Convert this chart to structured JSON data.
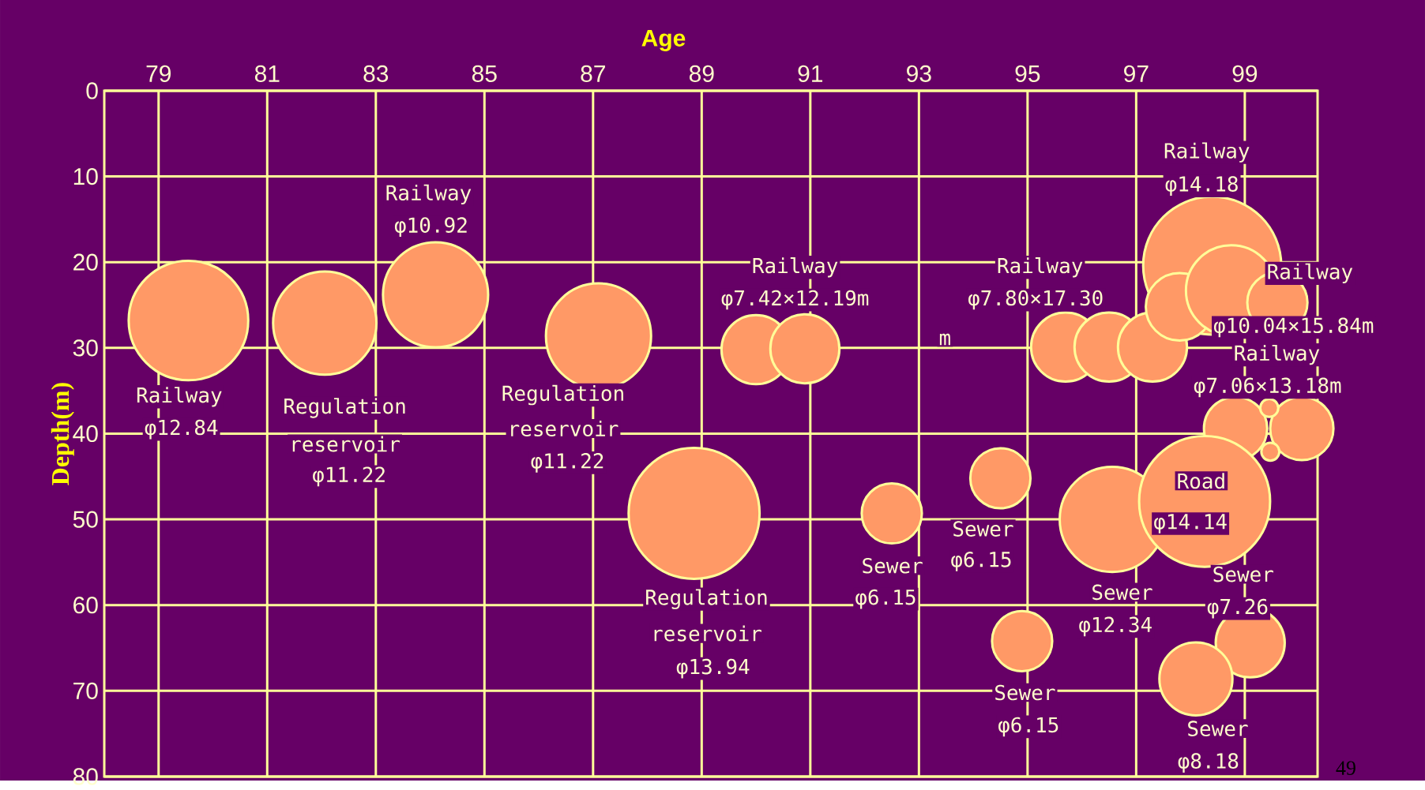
{
  "chart_data": {
    "type": "bubble",
    "xlabel": "Age",
    "ylabel": "Depth(m)",
    "xlim": [
      78,
      100.34
    ],
    "ylim": [
      80,
      0
    ],
    "xticks": [
      79,
      81,
      83,
      85,
      87,
      89,
      91,
      93,
      95,
      97,
      99
    ],
    "yticks": [
      0,
      10,
      20,
      30,
      40,
      50,
      60,
      70,
      80
    ],
    "grid": true,
    "series": [
      {
        "color": "#ff9966",
        "x": [
          79.55,
          82.06,
          84.1,
          87.1,
          88.86,
          90.0,
          90.9,
          92.5,
          94.5,
          94.9,
          95.7,
          96.5,
          97.3,
          96.56,
          98.4,
          97.8,
          98.75,
          99.6,
          98.83,
          100.05,
          99.45,
          99.47,
          98.26,
          99.1,
          98.1
        ],
        "values": [
          26.8,
          27.1,
          23.8,
          28.6,
          49.3,
          30.2,
          30.1,
          49.3,
          45.2,
          64.2,
          29.9,
          29.9,
          29.9,
          50.0,
          20.4,
          25.2,
          23.3,
          24.7,
          39.4,
          39.4,
          37.0,
          42.1,
          47.9,
          64.4,
          68.6
        ],
        "sizes": [
          0.75,
          0.56,
          0.58,
          0.58,
          0.9,
          0.25,
          0.25,
          0.19,
          0.19,
          0.19,
          0.25,
          0.25,
          0.25,
          0.58,
          1,
          0.24,
          0.43,
          0.19,
          0.21,
          0.21,
          0.017,
          0.017,
          0.9,
          0.25,
          0.28
        ]
      }
    ],
    "annotations": [
      "Railway",
      "φ12.84",
      "Regulation",
      "reservoir",
      "φ11.22",
      "Railway",
      "φ10.92",
      "Regulation",
      "reservoir",
      "φ11.22",
      "Regulation",
      "reservoir",
      "φ13.94",
      "Railway",
      "φ7.42×12.19m",
      "Sewer",
      "φ6.15",
      "Sewer",
      "φ6.15",
      "Sewer",
      "φ6.15",
      "Railway",
      "φ7.80×17.30",
      "m",
      "Railway",
      "φ14.18",
      "Railway",
      "φ10.04×15.84m",
      "Railway",
      "φ7.06×13.18m",
      "Road",
      "φ14.14",
      "Sewer",
      "φ12.34",
      "Sewer",
      "φ7.26",
      "Sewer",
      "φ8.18",
      "49"
    ]
  }
}
